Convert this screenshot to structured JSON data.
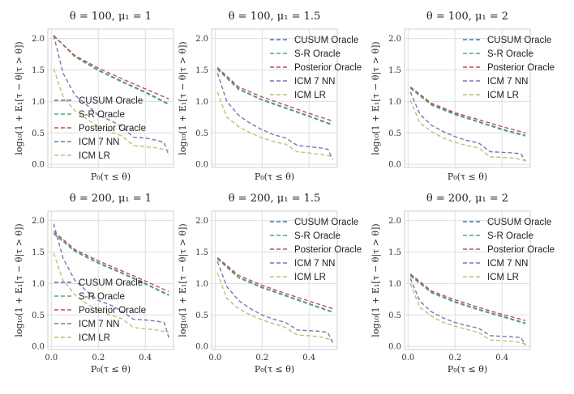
{
  "chart_data": {
    "type": "line",
    "layout": {
      "rows": 2,
      "cols": 3
    },
    "ylabel": "log₁₀(1 + E₁[τ − θ|τ > θ])",
    "xlabel": "P₀(τ ≤ θ)",
    "xlim": [
      -0.015,
      0.52
    ],
    "ylim": [
      -0.05,
      2.15
    ],
    "xticks": [
      0.0,
      0.2,
      0.4
    ],
    "yticks": [
      0.0,
      0.5,
      1.0,
      1.5,
      2.0
    ],
    "xtick_labels": [
      "0.0",
      "0.2",
      "0.4"
    ],
    "ytick_labels": [
      "0.0",
      "0.5",
      "1.0",
      "1.5",
      "2.0"
    ],
    "series_names": [
      "CUSUM Oracle",
      "S-R Oracle",
      "Posterior Oracle",
      "ICM 7 NN",
      "ICM LR"
    ],
    "series_colors": [
      "#4c72b0",
      "#55a868",
      "#c44e52",
      "#8172b2",
      "#ccb974"
    ],
    "line_style": "dashed",
    "grid": true,
    "legend_placement": [
      "lower-left",
      "upper-right",
      "upper-right",
      "lower-left",
      "upper-right",
      "upper-right"
    ],
    "panels": [
      {
        "title": "θ = 100, μ₁ = 1",
        "show_xticks": false,
        "series": [
          {
            "name": "CUSUM Oracle",
            "x": [
              0.01,
              0.1,
              0.2,
              0.3,
              0.4,
              0.5
            ],
            "y": [
              2.05,
              1.72,
              1.5,
              1.32,
              1.15,
              0.96
            ]
          },
          {
            "name": "S-R Oracle",
            "x": [
              0.01,
              0.1,
              0.2,
              0.3,
              0.4,
              0.5
            ],
            "y": [
              2.05,
              1.71,
              1.49,
              1.31,
              1.14,
              0.95
            ]
          },
          {
            "name": "Posterior Oracle",
            "x": [
              0.01,
              0.1,
              0.2,
              0.3,
              0.4,
              0.5
            ],
            "y": [
              2.04,
              1.73,
              1.53,
              1.36,
              1.2,
              1.04
            ]
          },
          {
            "name": "ICM 7 NN",
            "x": [
              0.01,
              0.05,
              0.1,
              0.15,
              0.2,
              0.25,
              0.3,
              0.35,
              0.4,
              0.45,
              0.48,
              0.5
            ],
            "y": [
              2.05,
              1.45,
              1.1,
              0.95,
              0.78,
              0.7,
              0.6,
              0.43,
              0.42,
              0.38,
              0.35,
              0.14
            ]
          },
          {
            "name": "ICM LR",
            "x": [
              0.01,
              0.05,
              0.1,
              0.15,
              0.2,
              0.25,
              0.3,
              0.35,
              0.4,
              0.45,
              0.5
            ],
            "y": [
              1.52,
              1.08,
              0.85,
              0.72,
              0.6,
              0.52,
              0.45,
              0.3,
              0.28,
              0.26,
              0.22
            ]
          }
        ]
      },
      {
        "title": "θ = 100, μ₁ = 1.5",
        "show_xticks": false,
        "series": [
          {
            "name": "CUSUM Oracle",
            "x": [
              0.01,
              0.1,
              0.2,
              0.3,
              0.4,
              0.5
            ],
            "y": [
              1.52,
              1.2,
              1.03,
              0.9,
              0.77,
              0.63
            ]
          },
          {
            "name": "S-R Oracle",
            "x": [
              0.01,
              0.1,
              0.2,
              0.3,
              0.4,
              0.5
            ],
            "y": [
              1.51,
              1.19,
              1.02,
              0.89,
              0.76,
              0.62
            ]
          },
          {
            "name": "Posterior Oracle",
            "x": [
              0.01,
              0.1,
              0.2,
              0.3,
              0.4,
              0.5
            ],
            "y": [
              1.54,
              1.23,
              1.07,
              0.94,
              0.81,
              0.69
            ]
          },
          {
            "name": "ICM 7 NN",
            "x": [
              0.01,
              0.05,
              0.1,
              0.15,
              0.2,
              0.25,
              0.3,
              0.35,
              0.4,
              0.45,
              0.48,
              0.5
            ],
            "y": [
              1.45,
              1.0,
              0.78,
              0.65,
              0.55,
              0.47,
              0.42,
              0.3,
              0.28,
              0.26,
              0.24,
              0.08
            ]
          },
          {
            "name": "ICM LR",
            "x": [
              0.01,
              0.05,
              0.1,
              0.15,
              0.2,
              0.25,
              0.3,
              0.35,
              0.4,
              0.45,
              0.5
            ],
            "y": [
              1.15,
              0.75,
              0.6,
              0.5,
              0.42,
              0.36,
              0.32,
              0.2,
              0.18,
              0.16,
              0.12
            ]
          }
        ]
      },
      {
        "title": "θ = 100, μ₁ = 2",
        "show_xticks": false,
        "series": [
          {
            "name": "CUSUM Oracle",
            "x": [
              0.01,
              0.1,
              0.2,
              0.3,
              0.4,
              0.5
            ],
            "y": [
              1.22,
              0.95,
              0.8,
              0.68,
              0.56,
              0.46
            ]
          },
          {
            "name": "S-R Oracle",
            "x": [
              0.01,
              0.1,
              0.2,
              0.3,
              0.4,
              0.5
            ],
            "y": [
              1.21,
              0.94,
              0.79,
              0.67,
              0.55,
              0.45
            ]
          },
          {
            "name": "Posterior Oracle",
            "x": [
              0.01,
              0.1,
              0.2,
              0.3,
              0.4,
              0.5
            ],
            "y": [
              1.23,
              0.97,
              0.82,
              0.71,
              0.6,
              0.5
            ]
          },
          {
            "name": "ICM 7 NN",
            "x": [
              0.01,
              0.05,
              0.1,
              0.15,
              0.2,
              0.25,
              0.3,
              0.35,
              0.4,
              0.45,
              0.48,
              0.5
            ],
            "y": [
              1.15,
              0.8,
              0.62,
              0.52,
              0.44,
              0.38,
              0.34,
              0.2,
              0.19,
              0.18,
              0.17,
              0.05
            ]
          },
          {
            "name": "ICM LR",
            "x": [
              0.01,
              0.05,
              0.1,
              0.15,
              0.2,
              0.25,
              0.3,
              0.35,
              0.4,
              0.45,
              0.5
            ],
            "y": [
              1.02,
              0.66,
              0.52,
              0.42,
              0.35,
              0.3,
              0.26,
              0.12,
              0.11,
              0.1,
              0.06
            ]
          }
        ]
      },
      {
        "title": "θ = 200, μ₁ = 1",
        "show_xticks": true,
        "series": [
          {
            "name": "CUSUM Oracle",
            "x": [
              0.01,
              0.1,
              0.2,
              0.3,
              0.4,
              0.5
            ],
            "y": [
              1.8,
              1.52,
              1.33,
              1.17,
              1.0,
              0.82
            ]
          },
          {
            "name": "S-R Oracle",
            "x": [
              0.01,
              0.1,
              0.2,
              0.3,
              0.4,
              0.5
            ],
            "y": [
              1.79,
              1.51,
              1.32,
              1.16,
              0.99,
              0.81
            ]
          },
          {
            "name": "Posterior Oracle",
            "x": [
              0.01,
              0.1,
              0.2,
              0.3,
              0.4,
              0.5
            ],
            "y": [
              1.83,
              1.54,
              1.36,
              1.2,
              1.04,
              0.87
            ]
          },
          {
            "name": "ICM 7 NN",
            "x": [
              0.01,
              0.05,
              0.1,
              0.15,
              0.2,
              0.25,
              0.3,
              0.35,
              0.4,
              0.45,
              0.48,
              0.5
            ],
            "y": [
              1.95,
              1.4,
              1.05,
              0.88,
              0.73,
              0.66,
              0.56,
              0.43,
              0.42,
              0.4,
              0.38,
              0.14
            ]
          },
          {
            "name": "ICM LR",
            "x": [
              0.01,
              0.05,
              0.1,
              0.15,
              0.2,
              0.25,
              0.3,
              0.35,
              0.4,
              0.45,
              0.5
            ],
            "y": [
              1.48,
              1.05,
              0.82,
              0.68,
              0.57,
              0.5,
              0.44,
              0.3,
              0.28,
              0.26,
              0.22
            ]
          }
        ]
      },
      {
        "title": "θ = 200, μ₁ = 1.5",
        "show_xticks": true,
        "series": [
          {
            "name": "CUSUM Oracle",
            "x": [
              0.01,
              0.1,
              0.2,
              0.3,
              0.4,
              0.5
            ],
            "y": [
              1.4,
              1.1,
              0.94,
              0.81,
              0.68,
              0.55
            ]
          },
          {
            "name": "S-R Oracle",
            "x": [
              0.01,
              0.1,
              0.2,
              0.3,
              0.4,
              0.5
            ],
            "y": [
              1.39,
              1.09,
              0.93,
              0.8,
              0.67,
              0.54
            ]
          },
          {
            "name": "Posterior Oracle",
            "x": [
              0.01,
              0.1,
              0.2,
              0.3,
              0.4,
              0.5
            ],
            "y": [
              1.41,
              1.13,
              0.97,
              0.84,
              0.72,
              0.6
            ]
          },
          {
            "name": "ICM 7 NN",
            "x": [
              0.01,
              0.05,
              0.1,
              0.15,
              0.2,
              0.25,
              0.3,
              0.35,
              0.4,
              0.45,
              0.48,
              0.5
            ],
            "y": [
              1.35,
              0.95,
              0.73,
              0.6,
              0.5,
              0.43,
              0.38,
              0.26,
              0.25,
              0.24,
              0.22,
              0.06
            ]
          },
          {
            "name": "ICM LR",
            "x": [
              0.01,
              0.05,
              0.1,
              0.15,
              0.2,
              0.25,
              0.3,
              0.35,
              0.4,
              0.45,
              0.5
            ],
            "y": [
              1.17,
              0.76,
              0.6,
              0.5,
              0.42,
              0.36,
              0.3,
              0.18,
              0.17,
              0.15,
              0.1
            ]
          }
        ]
      },
      {
        "title": "θ = 200, μ₁ = 2",
        "show_xticks": true,
        "series": [
          {
            "name": "CUSUM Oracle",
            "x": [
              0.01,
              0.1,
              0.2,
              0.3,
              0.4,
              0.5
            ],
            "y": [
              1.13,
              0.86,
              0.71,
              0.59,
              0.48,
              0.37
            ]
          },
          {
            "name": "S-R Oracle",
            "x": [
              0.01,
              0.1,
              0.2,
              0.3,
              0.4,
              0.5
            ],
            "y": [
              1.12,
              0.85,
              0.7,
              0.58,
              0.47,
              0.36
            ]
          },
          {
            "name": "Posterior Oracle",
            "x": [
              0.01,
              0.1,
              0.2,
              0.3,
              0.4,
              0.5
            ],
            "y": [
              1.15,
              0.88,
              0.74,
              0.62,
              0.51,
              0.41
            ]
          },
          {
            "name": "ICM 7 NN",
            "x": [
              0.01,
              0.05,
              0.1,
              0.15,
              0.2,
              0.25,
              0.3,
              0.35,
              0.4,
              0.45,
              0.48,
              0.5
            ],
            "y": [
              1.08,
              0.72,
              0.55,
              0.45,
              0.38,
              0.33,
              0.29,
              0.17,
              0.16,
              0.15,
              0.14,
              0.02
            ]
          },
          {
            "name": "ICM LR",
            "x": [
              0.01,
              0.05,
              0.1,
              0.15,
              0.2,
              0.25,
              0.3,
              0.35,
              0.4,
              0.45,
              0.5
            ],
            "y": [
              1.0,
              0.62,
              0.48,
              0.38,
              0.32,
              0.27,
              0.22,
              0.1,
              0.09,
              0.08,
              0.04
            ]
          }
        ]
      }
    ]
  }
}
